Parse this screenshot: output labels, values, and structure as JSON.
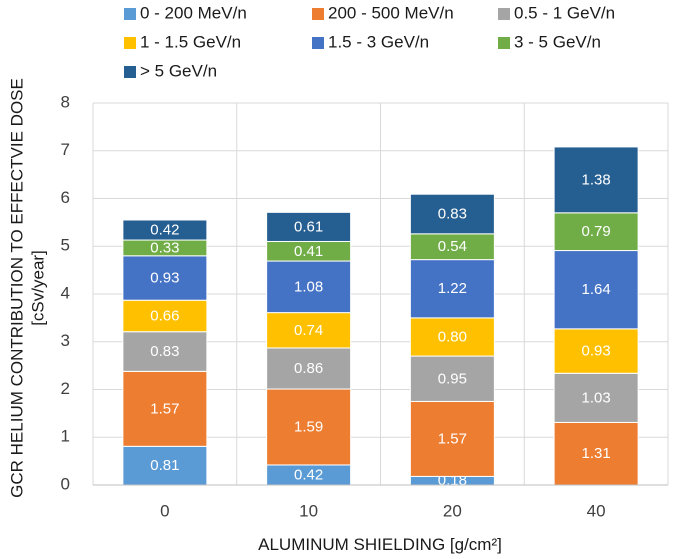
{
  "chart_data": {
    "type": "bar",
    "stacked": true,
    "categories": [
      "0",
      "10",
      "20",
      "40"
    ],
    "series": [
      {
        "name": "0 - 200 MeV/n",
        "color": "#5B9BD5",
        "values": [
          0.81,
          0.42,
          0.18,
          0
        ],
        "labels": [
          "0.81",
          "0.42",
          "0.18",
          ""
        ]
      },
      {
        "name": "200 - 500 MeV/n",
        "color": "#ED7D31",
        "values": [
          1.57,
          1.59,
          1.57,
          1.31
        ],
        "labels": [
          "1.57",
          "1.59",
          "1.57",
          "1.31"
        ]
      },
      {
        "name": "0.5 - 1 GeV/n",
        "color": "#A5A5A5",
        "values": [
          0.83,
          0.86,
          0.95,
          1.03
        ],
        "labels": [
          "0.83",
          "0.86",
          "0.95",
          "1.03"
        ]
      },
      {
        "name": "1 - 1.5 GeV/n",
        "color": "#FFC000",
        "values": [
          0.66,
          0.74,
          0.8,
          0.93
        ],
        "labels": [
          "0.66",
          "0.74",
          "0.80",
          "0.93"
        ]
      },
      {
        "name": "1.5 - 3 GeV/n",
        "color": "#4472C4",
        "values": [
          0.93,
          1.08,
          1.22,
          1.64
        ],
        "labels": [
          "0.93",
          "1.08",
          "1.22",
          "1.64"
        ]
      },
      {
        "name": "3 - 5 GeV/n",
        "color": "#70AD47",
        "values": [
          0.33,
          0.41,
          0.54,
          0.79
        ],
        "labels": [
          "0.33",
          "0.41",
          "0.54",
          "0.79"
        ]
      },
      {
        "name": "> 5 GeV/n",
        "color": "#255E91",
        "values": [
          0.42,
          0.61,
          0.83,
          1.38
        ],
        "labels": [
          "0.42",
          "0.61",
          "0.83",
          "1.38"
        ]
      }
    ],
    "title": "",
    "xlabel": "ALUMINUM SHIELDING [g/cm²]",
    "ylabel_line1": "GCR HELIUM CONTRIBUTION TO EFFECTVIE DOSE",
    "ylabel_line2": "[cSv/year]",
    "ylim": [
      0,
      8
    ],
    "yticks": [
      "0",
      "1",
      "2",
      "3",
      "4",
      "5",
      "6",
      "7",
      "8"
    ],
    "grid": true,
    "legend_position": "top"
  }
}
